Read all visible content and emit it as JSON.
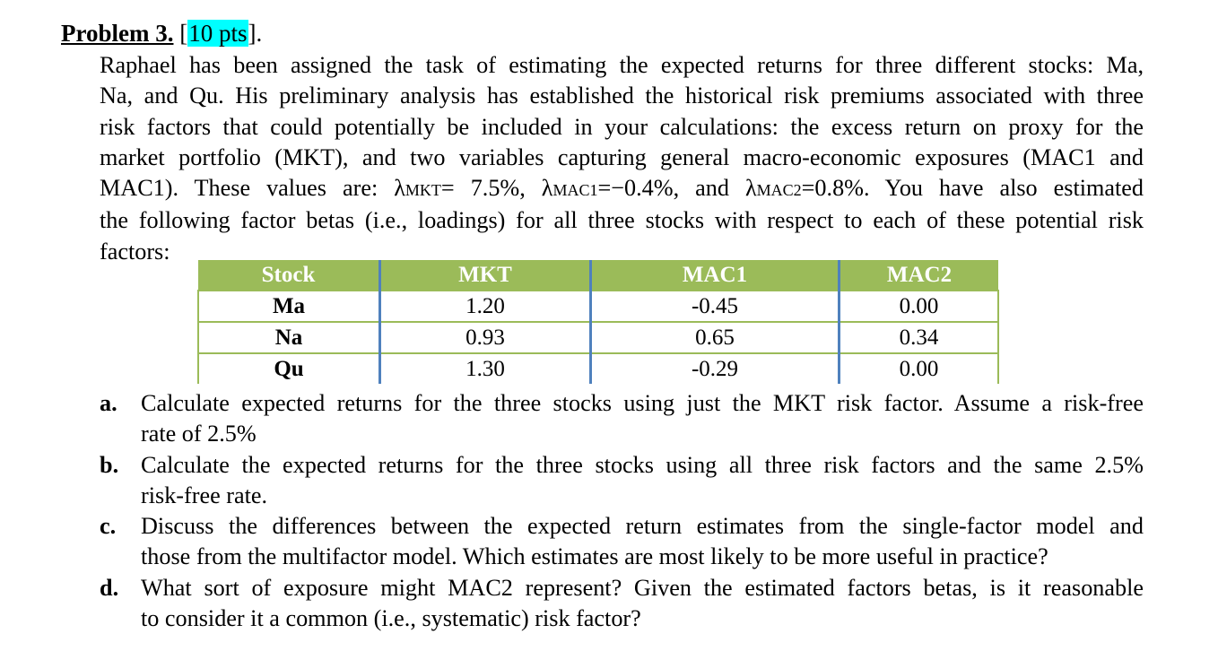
{
  "heading": {
    "label": "Problem 3.",
    "bracket_open": " [",
    "points": "10 pts",
    "bracket_close": "]."
  },
  "intro": {
    "lines": [
      "Raphael has been assigned the task of estimating the expected returns for three different stocks: Ma,",
      "Na, and Qu. His preliminary analysis has established the historical risk premiums associated with three",
      "risk factors that could potentially be included in your calculations:  the excess return on proxy for the",
      "market portfolio (MKT), and two variables capturing general macro-economic exposures (MAC1 and"
    ],
    "line5": {
      "pre": "MAC1). These values are: λ",
      "sub1": "MKT",
      "mid1": "= 7.5%, λ",
      "sub2": "MAC1",
      "mid2": "=−0.4%, and  λ",
      "sub3": "MAC2",
      "post": "=0.8%. You have also estimated"
    },
    "line6": "the following factor betas (i.e., loadings) for all three stocks with respect to each of these potential risk",
    "line7": "factors:"
  },
  "table": {
    "headers": [
      "Stock",
      "MKT",
      "MAC1",
      "MAC2"
    ],
    "rows": [
      [
        "Ma",
        "1.20",
        "-0.45",
        "0.00"
      ],
      [
        "Na",
        "0.93",
        "0.65",
        "0.34"
      ],
      [
        "Qu",
        "1.30",
        "-0.29",
        "0.00"
      ]
    ],
    "header_color": "#9bbb59",
    "divider_color": "#4f81bd"
  },
  "questions": [
    {
      "label": "a.",
      "lines": [
        "Calculate expected returns for the three stocks using just the MKT risk factor. Assume a risk-free",
        "rate of  2.5%"
      ]
    },
    {
      "label": "b.",
      "lines": [
        "Calculate the expected returns for the three stocks using all three risk factors and the same 2.5%",
        "risk-free rate."
      ]
    },
    {
      "label": "c.",
      "lines": [
        "Discuss the differences between the expected return estimates from the single-factor model and",
        "those from the multifactor model. Which estimates are most likely to be more useful in practice?"
      ]
    },
    {
      "label": "d.",
      "lines": [
        "What sort of exposure might MAC2 represent? Given the estimated factors betas, is it reasonable",
        "to consider it a common (i.e., systematic) risk factor?"
      ]
    }
  ]
}
